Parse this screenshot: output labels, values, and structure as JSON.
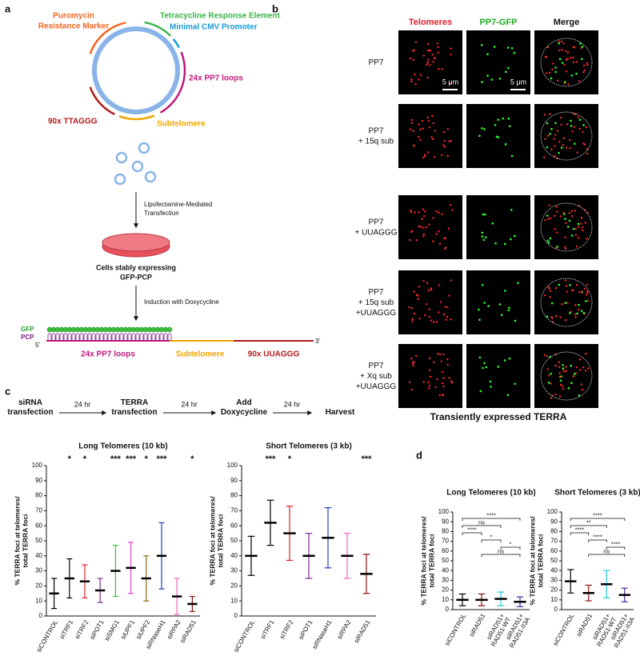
{
  "panel_labels": [
    "a",
    "b",
    "c",
    "d"
  ],
  "plasmid": {
    "puromycin": [
      "Puromycin",
      "Resistance Marker"
    ],
    "tre": "Tetracycline Response Element",
    "cmv": "Minimal CMV Promoter",
    "pp7": "24x PP7 loops",
    "subtelomere": "Subtelomere",
    "repeats": "90x TTAGGG"
  },
  "steps": {
    "transfection": [
      "Lipofectamine-Mediated",
      "Transfection"
    ],
    "cells": [
      "Cells stably expressing",
      "GFP-PCP"
    ],
    "induction": "Induction with Doxycycline"
  },
  "construct": {
    "gfp": "GFP",
    "pcp": "PCP",
    "five": "5'",
    "three": "3'",
    "pp7": "24x PP7 loops",
    "subtelomere": "Subtelomere",
    "repeats": "90x UUAGGG"
  },
  "imaging": {
    "columns": [
      "Telomeres",
      "PP7-GFP",
      "Merge"
    ],
    "rows": [
      [
        "PP7"
      ],
      [
        "PP7",
        "+ 15q sub"
      ],
      [
        "PP7",
        "+ UUAGGG"
      ],
      [
        "PP7",
        "+ 15q sub",
        "+UUAGGG"
      ],
      [
        "PP7",
        "+ Xq sub",
        "+UUAGGG"
      ]
    ],
    "scale_bar": "5 μm",
    "caption": "Transiently expressed TERRA"
  },
  "timeline": {
    "steps": [
      [
        "siRNA",
        "transfection"
      ],
      [
        "TERRA",
        "transfection"
      ],
      [
        "Add",
        "Doxycycline"
      ],
      [
        "Harvest"
      ]
    ],
    "interval": "24 hr"
  },
  "chart_data": [
    {
      "type": "dot_plot",
      "title": "Long Telomeres (10 kb)",
      "ylabel": [
        "% TERRA foci at telomeres/",
        "total TERRA foci"
      ],
      "categories": [
        "siCONTROL",
        "siTRF1",
        "siTRF2",
        "siPOT1",
        "siSMG1",
        "siUPF1",
        "siUPF2",
        "siRNaseH1",
        "siRPA2",
        "siRAD51"
      ],
      "values": [
        15,
        25,
        23,
        17,
        30,
        32,
        25,
        40,
        13,
        8
      ],
      "errors": [
        10,
        13,
        11,
        8,
        17,
        17,
        15,
        22,
        12,
        5
      ],
      "colors": [
        "#000000",
        "#000000",
        "#e0202a",
        "#7b2a8f",
        "#2ec82e",
        "#e040d0",
        "#8b6a14",
        "#1f3fbf",
        "#f060c8",
        "#8b1010"
      ],
      "significance": [
        null,
        "*",
        "*",
        null,
        "***",
        "***",
        "*",
        "***",
        null,
        "*"
      ],
      "ylim": [
        0,
        100
      ],
      "yticks": [
        0,
        10,
        20,
        30,
        40,
        50,
        60,
        70,
        80,
        90,
        100
      ]
    },
    {
      "type": "dot_plot",
      "title": "Short Telomeres (3 kb)",
      "ylabel": [
        "% TERRA foci at telomeres/",
        "total TERRA foci"
      ],
      "categories": [
        "siCONTROL",
        "siTRF1",
        "siTRF2",
        "siPOT1",
        "siRNaseH1",
        "siRPA2",
        "siRAD51"
      ],
      "values": [
        40,
        62,
        55,
        40,
        52,
        40,
        28
      ],
      "errors": [
        13,
        15,
        18,
        15,
        20,
        15,
        13
      ],
      "colors": [
        "#000000",
        "#000000",
        "#e0202a",
        "#7b2a8f",
        "#1f3fbf",
        "#f060c8",
        "#8b1010"
      ],
      "significance": [
        null,
        "***",
        "*",
        null,
        null,
        null,
        "***"
      ],
      "ylim": [
        0,
        100
      ],
      "yticks": [
        0,
        10,
        20,
        30,
        40,
        50,
        60,
        70,
        80,
        90,
        100
      ]
    },
    {
      "type": "dot_plot",
      "title": "Long Telomeres (10 kb)",
      "ylabel": [
        "% TERRA foci at telomeres/",
        "total TERRA foci"
      ],
      "categories": [
        [
          "siCONTROL"
        ],
        [
          "siRAD51"
        ],
        [
          "siRAD51+",
          "RAD51-WT"
        ],
        [
          "siRAD51+",
          "RAD51-II3A"
        ]
      ],
      "values": [
        10,
        10,
        11,
        8
      ],
      "errors": [
        6,
        6,
        7,
        5
      ],
      "colors": [
        "#000000",
        "#8b1010",
        "#20c8d8",
        "#4a2aa0"
      ],
      "comparisons": [
        {
          "pair": [
            0,
            3
          ],
          "label": "****"
        },
        {
          "pair": [
            0,
            2
          ],
          "label": "ns"
        },
        {
          "pair": [
            0,
            1
          ],
          "label": "****"
        },
        {
          "pair": [
            1,
            2
          ],
          "label": "*"
        },
        {
          "pair": [
            2,
            3
          ],
          "label": "*"
        },
        {
          "pair": [
            1,
            3
          ],
          "label": "ns"
        }
      ],
      "ylim": [
        0,
        100
      ],
      "yticks": [
        0,
        10,
        20,
        30,
        40,
        50,
        60,
        70,
        80,
        90,
        100
      ]
    },
    {
      "type": "dot_plot",
      "title": "Short Telomeres (3 kb)",
      "ylabel": [
        "% TERRA foci at telomeres/",
        "total TERRA foci"
      ],
      "categories": [
        [
          "siCONTROL"
        ],
        [
          "siRAD51"
        ],
        [
          "siRAD51+",
          "RAD51-WT"
        ],
        [
          "siRAD51+",
          "RAD51-II3A"
        ]
      ],
      "values": [
        29,
        17,
        26,
        15
      ],
      "errors": [
        12,
        8,
        14,
        7
      ],
      "colors": [
        "#000000",
        "#8b1010",
        "#20c8d8",
        "#4a2aa0"
      ],
      "comparisons": [
        {
          "pair": [
            0,
            3
          ],
          "label": "****"
        },
        {
          "pair": [
            0,
            2
          ],
          "label": "**"
        },
        {
          "pair": [
            0,
            1
          ],
          "label": "****"
        },
        {
          "pair": [
            1,
            2
          ],
          "label": "****"
        },
        {
          "pair": [
            2,
            3
          ],
          "label": "****"
        },
        {
          "pair": [
            1,
            3
          ],
          "label": "ns"
        }
      ],
      "ylim": [
        0,
        100
      ],
      "yticks": [
        0,
        10,
        20,
        30,
        40,
        50,
        60,
        70,
        80,
        90,
        100
      ]
    }
  ]
}
